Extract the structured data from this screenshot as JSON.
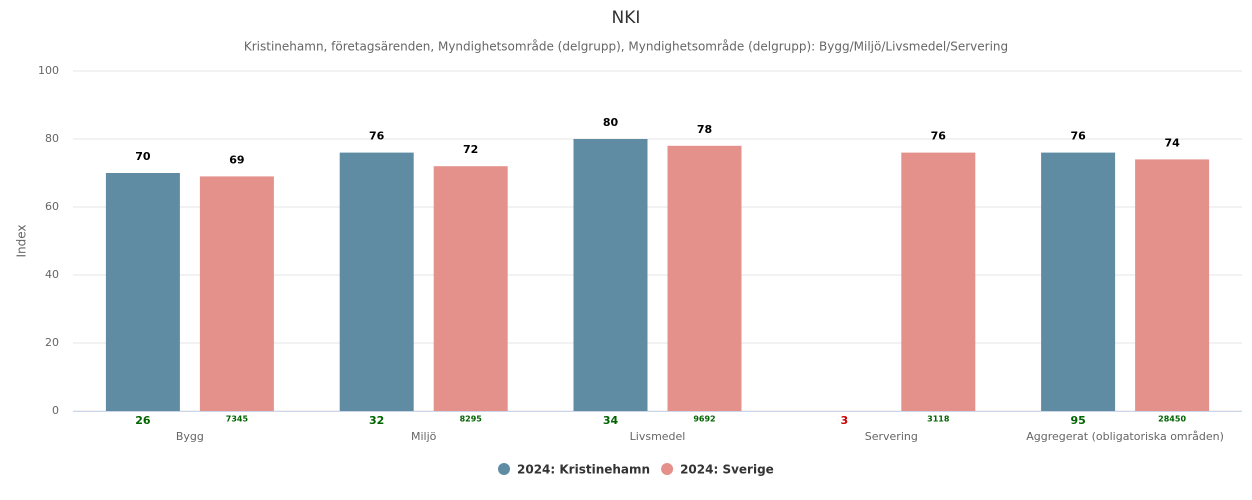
{
  "chart_data": {
    "type": "bar",
    "title": "NKI",
    "subtitle": "Kristinehamn, företagsärenden, Myndighetsområde (delgrupp), Myndighetsområde (delgrupp): Bygg/Miljö/Livsmedel/Servering",
    "y_label": "Index",
    "categories": [
      "Bygg",
      "Miljö",
      "Livsmedel",
      "Servering",
      "Aggregerat (obligatoriska områden)"
    ],
    "series": [
      {
        "name": "2024: Kristinehamn",
        "color": "#5f8ca3",
        "values": [
          70,
          76,
          80,
          null,
          76
        ],
        "counts": [
          26,
          32,
          34,
          3,
          95
        ],
        "count_colors": [
          "#006400",
          "#006400",
          "#006400",
          "#cc0000",
          "#006400"
        ]
      },
      {
        "name": "2024: Sverige",
        "color": "#e4918c",
        "values": [
          69,
          72,
          78,
          76,
          74
        ],
        "counts": [
          7345,
          8295,
          9692,
          3118,
          28450
        ],
        "count_colors": [
          "#006400",
          "#006400",
          "#006400",
          "#006400",
          "#006400"
        ]
      }
    ],
    "ylim": [
      0,
      100
    ],
    "yticks": [
      0,
      20,
      40,
      60,
      80,
      100
    ],
    "grid": true,
    "legend": "bottom"
  }
}
